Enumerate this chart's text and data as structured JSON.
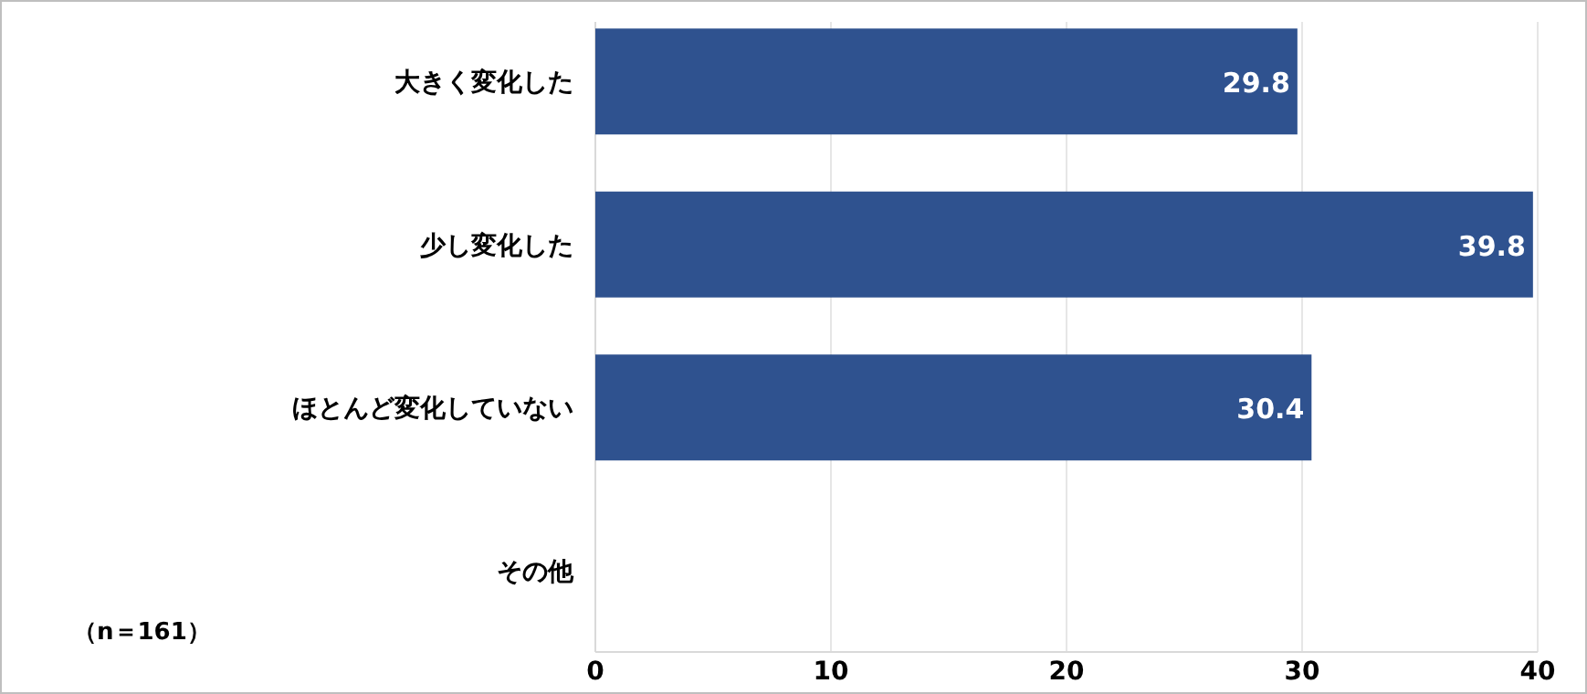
{
  "chart_data": {
    "type": "bar",
    "orientation": "horizontal",
    "categories": [
      "大きく変化した",
      "少し変化した",
      "ほとんど変化していない",
      "その他"
    ],
    "values": [
      29.8,
      39.8,
      30.4,
      null
    ],
    "color": "#2f528f",
    "xlim": [
      0,
      40
    ],
    "xticks": [
      0,
      10,
      20,
      30,
      40
    ],
    "grid": "x",
    "data_labels": true,
    "annotations": [
      "（n＝161）"
    ]
  }
}
